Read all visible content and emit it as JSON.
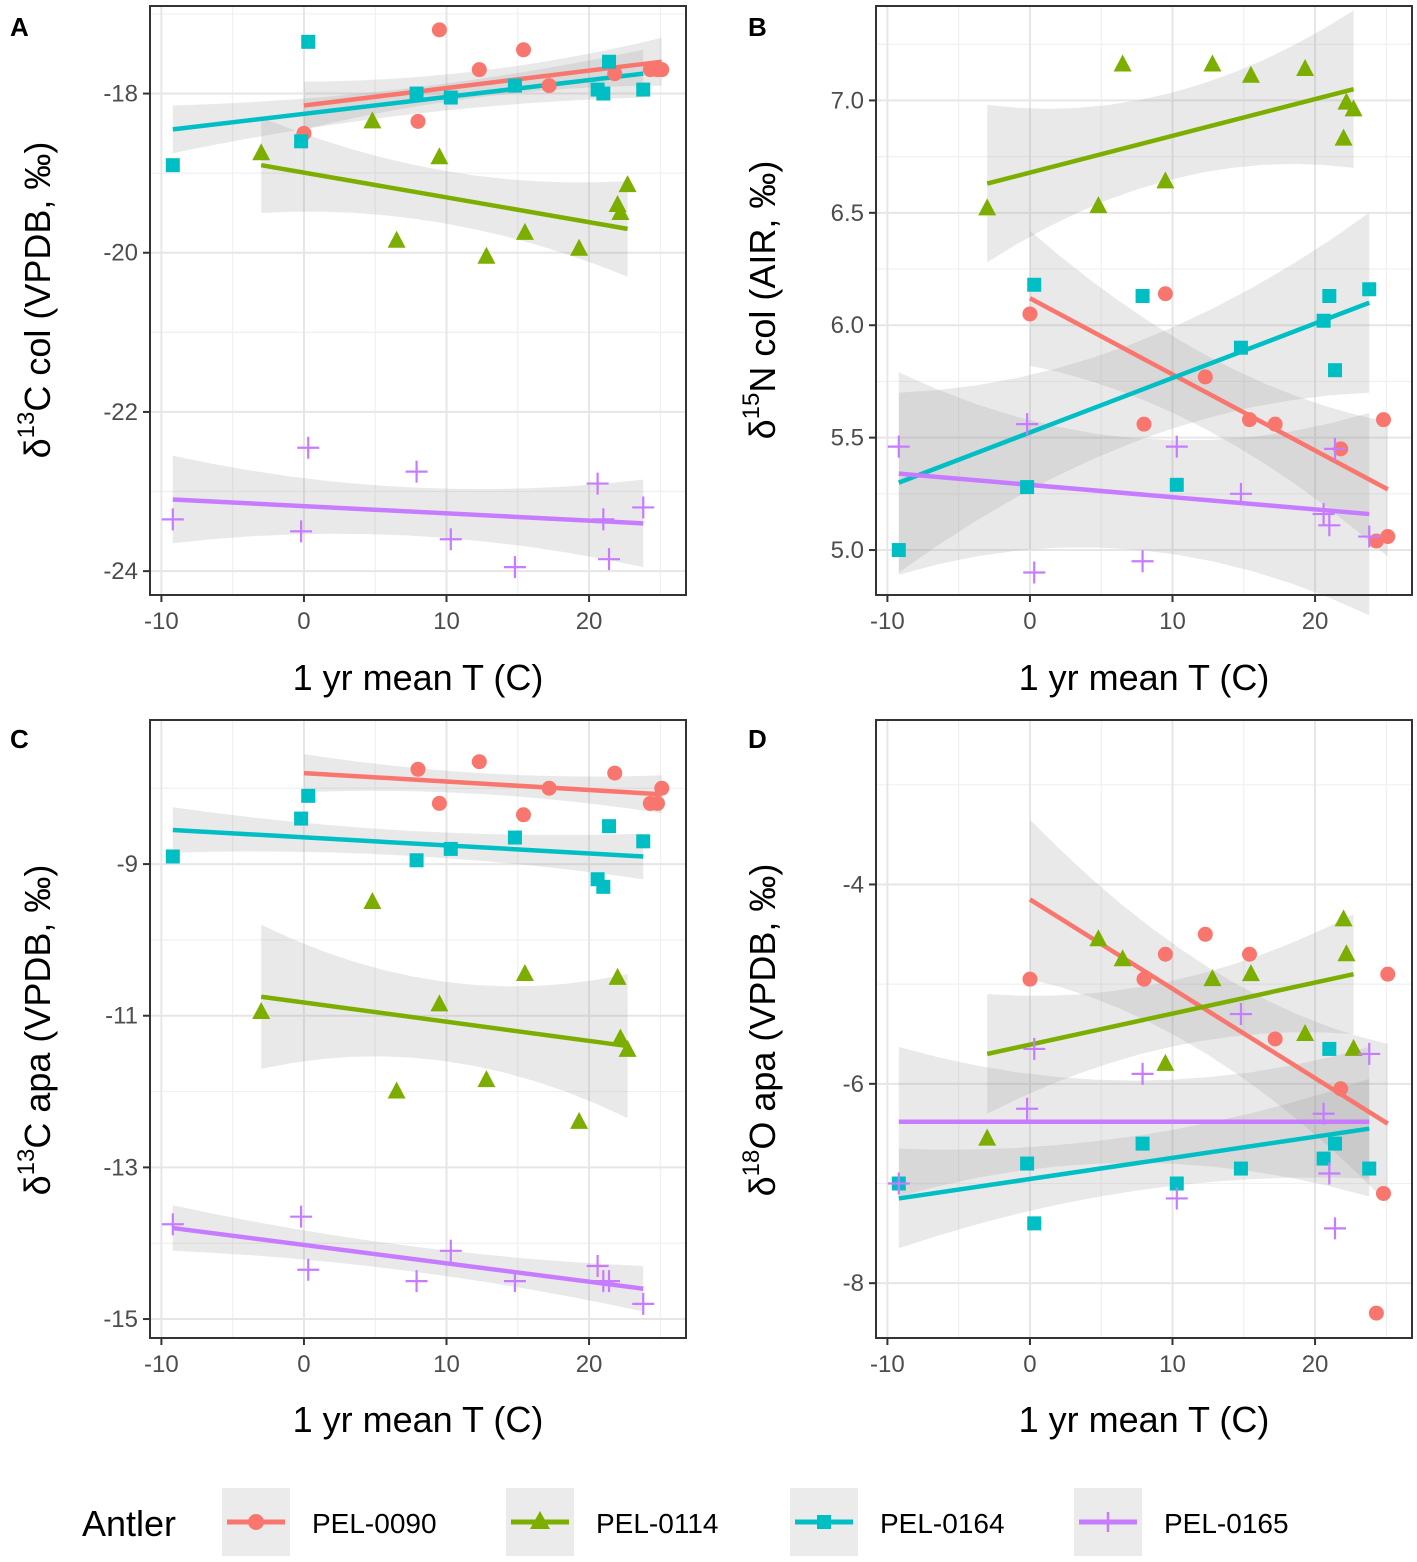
{
  "legend": {
    "title": "Antler",
    "entries": [
      {
        "label": "PEL-0090",
        "color": "#F8766D",
        "shape": "circle"
      },
      {
        "label": "PEL-0114",
        "color": "#7CAE00",
        "shape": "triangle"
      },
      {
        "label": "PEL-0164",
        "color": "#00BFC4",
        "shape": "square"
      },
      {
        "label": "PEL-0165",
        "color": "#C77CFF",
        "shape": "cross"
      }
    ]
  },
  "chart_data": [
    {
      "type": "scatter",
      "panel": "A",
      "xlabel": "1 yr mean T (C)",
      "ylabel_parts": {
        "greek": "δ",
        "sup": "13",
        "rest": "C col (VPDB, ‰)"
      },
      "xlim": [
        -10.8,
        26.8
      ],
      "ylim": [
        -24.3,
        -16.9
      ],
      "xticks": [
        -10,
        0,
        10,
        20
      ],
      "xtick_labels": [
        "-10",
        "0",
        "10",
        "20"
      ],
      "yticks": [
        -24,
        -22,
        -20,
        -18
      ],
      "ytick_labels": [
        "-24",
        "-22",
        "-20",
        "-18"
      ],
      "series": [
        {
          "name": "PEL-0090",
          "x": [
            0,
            9.5,
            8,
            12.3,
            15.4,
            17.2,
            21.8,
            24.3,
            24.8,
            25.1
          ],
          "y": [
            -18.5,
            -17.2,
            -18.35,
            -17.7,
            -17.45,
            -17.9,
            -17.75,
            -17.7,
            -17.7,
            -17.7
          ],
          "fit": {
            "x": [
              0,
              25.1
            ],
            "y": [
              -18.15,
              -17.6
            ]
          },
          "ci_halfwidth": 0.3
        },
        {
          "name": "PEL-0114",
          "x": [
            -3,
            4.8,
            6.5,
            9.5,
            12.8,
            15.5,
            19.3,
            22,
            22.2,
            22.7
          ],
          "y": [
            -18.75,
            -18.35,
            -19.85,
            -18.8,
            -20.05,
            -19.75,
            -19.95,
            -19.4,
            -19.5,
            -19.15
          ],
          "fit": {
            "x": [
              -3,
              22.7
            ],
            "y": [
              -18.9,
              -19.7
            ]
          },
          "ci_halfwidth": 0.6
        },
        {
          "name": "PEL-0164",
          "x": [
            -9.2,
            -0.2,
            0.3,
            7.9,
            10.3,
            14.8,
            20.6,
            21,
            21.4,
            23.8
          ],
          "y": [
            -18.9,
            -18.6,
            -17.35,
            -18,
            -18.05,
            -17.9,
            -17.95,
            -18,
            -17.6,
            -17.95
          ],
          "fit": {
            "x": [
              -9.2,
              23.8
            ],
            "y": [
              -18.45,
              -17.75
            ]
          },
          "ci_halfwidth": 0.3
        },
        {
          "name": "PEL-0165",
          "x": [
            -9.2,
            -0.2,
            0.3,
            7.9,
            10.3,
            14.8,
            20.6,
            21,
            21.4,
            23.8
          ],
          "y": [
            -23.35,
            -23.5,
            -22.45,
            -22.75,
            -23.6,
            -23.95,
            -22.9,
            -23.35,
            -23.85,
            -23.2
          ],
          "fit": {
            "x": [
              -9.2,
              23.8
            ],
            "y": [
              -23.1,
              -23.4
            ]
          },
          "ci_halfwidth": 0.55
        }
      ]
    },
    {
      "type": "scatter",
      "panel": "B",
      "xlabel": "1 yr mean T (C)",
      "ylabel_parts": {
        "greek": "δ",
        "sup": "15",
        "rest": "N col (AIR, ‰)"
      },
      "xlim": [
        -10.8,
        26.8
      ],
      "ylim": [
        4.8,
        7.42
      ],
      "xticks": [
        -10,
        0,
        10,
        20
      ],
      "xtick_labels": [
        "-10",
        "0",
        "10",
        "20"
      ],
      "yticks": [
        5.0,
        5.5,
        6.0,
        6.5,
        7.0
      ],
      "ytick_labels": [
        "5.0",
        "5.5",
        "6.0",
        "6.5",
        "7.0"
      ],
      "series": [
        {
          "name": "PEL-0090",
          "x": [
            0,
            9.5,
            8,
            12.3,
            15.4,
            17.2,
            21.8,
            24.3,
            24.8,
            25.1
          ],
          "y": [
            6.05,
            6.14,
            5.56,
            5.77,
            5.58,
            5.56,
            5.45,
            5.04,
            5.58,
            5.06
          ],
          "fit": {
            "x": [
              0,
              25.1
            ],
            "y": [
              6.12,
              5.27
            ]
          },
          "ci_halfwidth": 0.3
        },
        {
          "name": "PEL-0114",
          "x": [
            -3,
            4.8,
            6.5,
            9.5,
            12.8,
            15.5,
            19.3,
            22,
            22.2,
            22.7
          ],
          "y": [
            6.52,
            6.53,
            7.16,
            6.64,
            7.16,
            7.11,
            7.14,
            6.83,
            6.99,
            6.96
          ],
          "fit": {
            "x": [
              -3,
              22.7
            ],
            "y": [
              6.63,
              7.05
            ]
          },
          "ci_halfwidth": 0.35
        },
        {
          "name": "PEL-0164",
          "x": [
            -9.2,
            -0.2,
            0.3,
            7.9,
            10.3,
            14.8,
            20.6,
            21,
            21.4,
            23.8
          ],
          "y": [
            5.0,
            5.28,
            6.18,
            6.13,
            5.29,
            5.9,
            6.02,
            6.13,
            5.8,
            6.16
          ],
          "fit": {
            "x": [
              -9.2,
              23.8
            ],
            "y": [
              5.3,
              6.1
            ]
          },
          "ci_halfwidth": 0.4
        },
        {
          "name": "PEL-0165",
          "x": [
            -9.2,
            -0.2,
            0.3,
            7.9,
            10.3,
            14.8,
            20.6,
            21,
            21.4,
            23.8
          ],
          "y": [
            5.46,
            5.56,
            4.9,
            4.95,
            5.46,
            5.25,
            5.16,
            5.11,
            5.45,
            5.06
          ],
          "fit": {
            "x": [
              -9.2,
              23.8
            ],
            "y": [
              5.34,
              5.16
            ]
          },
          "ci_halfwidth": 0.45
        }
      ]
    },
    {
      "type": "scatter",
      "panel": "C",
      "xlabel": "1 yr mean T (C)",
      "ylabel_parts": {
        "greek": "δ",
        "sup": "13",
        "rest": "C apa (VPDB, ‰)"
      },
      "xlim": [
        -10.8,
        26.8
      ],
      "ylim": [
        -15.25,
        -7.1
      ],
      "xticks": [
        -10,
        0,
        10,
        20
      ],
      "xtick_labels": [
        "-10",
        "0",
        "10",
        "20"
      ],
      "yticks": [
        -15,
        -13,
        -11,
        -9
      ],
      "ytick_labels": [
        "-15",
        "-13",
        "-11",
        "-9"
      ],
      "series": [
        {
          "name": "PEL-0090",
          "x": [
            9.5,
            8,
            12.3,
            15.4,
            17.2,
            21.8,
            24.3,
            24.8,
            25.1
          ],
          "y": [
            -8.2,
            -7.75,
            -7.65,
            -8.35,
            -8.0,
            -7.8,
            -8.2,
            -8.2,
            -8.0
          ],
          "fit": {
            "x": [
              0,
              25.1
            ],
            "y": [
              -7.8,
              -8.08
            ]
          },
          "ci_halfwidth": 0.25
        },
        {
          "name": "PEL-0114",
          "x": [
            -3,
            4.8,
            6.5,
            9.5,
            12.8,
            15.5,
            19.3,
            22,
            22.2,
            22.7
          ],
          "y": [
            -10.95,
            -9.5,
            -12.0,
            -10.85,
            -11.85,
            -10.45,
            -12.4,
            -10.5,
            -11.3,
            -11.45
          ],
          "fit": {
            "x": [
              -3,
              22.7
            ],
            "y": [
              -10.75,
              -11.4
            ]
          },
          "ci_halfwidth": 0.95
        },
        {
          "name": "PEL-0164",
          "x": [
            -9.2,
            -0.2,
            0.3,
            7.9,
            10.3,
            14.8,
            20.6,
            21,
            21.4,
            23.8
          ],
          "y": [
            -8.9,
            -8.4,
            -8.1,
            -8.95,
            -8.8,
            -8.65,
            -9.2,
            -9.3,
            -8.5,
            -8.7
          ],
          "fit": {
            "x": [
              -9.2,
              23.8
            ],
            "y": [
              -8.55,
              -8.9
            ]
          },
          "ci_halfwidth": 0.3
        },
        {
          "name": "PEL-0165",
          "x": [
            -9.2,
            -0.2,
            0.3,
            7.9,
            10.3,
            14.8,
            20.6,
            21,
            21.4,
            23.8
          ],
          "y": [
            -13.75,
            -13.65,
            -14.35,
            -14.5,
            -14.1,
            -14.5,
            -14.3,
            -14.5,
            -14.5,
            -14.8
          ],
          "fit": {
            "x": [
              -9.2,
              23.8
            ],
            "y": [
              -13.8,
              -14.6
            ]
          },
          "ci_halfwidth": 0.3
        }
      ]
    },
    {
      "type": "scatter",
      "panel": "D",
      "xlabel": "1 yr mean T (C)",
      "ylabel_parts": {
        "greek": "δ",
        "sup": "18",
        "rest": "O apa (VPDB, ‰)"
      },
      "xlim": [
        -10.8,
        26.8
      ],
      "ylim": [
        -8.55,
        -2.35
      ],
      "xticks": [
        -10,
        0,
        10,
        20
      ],
      "xtick_labels": [
        "-10",
        "0",
        "10",
        "20"
      ],
      "yticks": [
        -8,
        -6,
        -4
      ],
      "ytick_labels": [
        "-8",
        "-6",
        "-4"
      ],
      "series": [
        {
          "name": "PEL-0090",
          "x": [
            0,
            9.5,
            8,
            12.3,
            15.4,
            17.2,
            21.8,
            24.3,
            24.8,
            25.1
          ],
          "y": [
            -4.95,
            -4.7,
            -4.95,
            -4.5,
            -4.7,
            -5.55,
            -6.05,
            -8.3,
            -7.1,
            -4.9
          ],
          "fit": {
            "x": [
              0,
              25.1
            ],
            "y": [
              -4.15,
              -6.4
            ]
          },
          "ci_halfwidth": 0.8
        },
        {
          "name": "PEL-0114",
          "x": [
            -3,
            4.8,
            6.5,
            9.5,
            12.8,
            15.5,
            19.3,
            22,
            22.2,
            22.7
          ],
          "y": [
            -6.55,
            -4.55,
            -4.75,
            -5.8,
            -4.95,
            -4.9,
            -5.5,
            -4.35,
            -4.7,
            -5.65
          ],
          "fit": {
            "x": [
              -3,
              22.7
            ],
            "y": [
              -5.7,
              -4.9
            ]
          },
          "ci_halfwidth": 0.6
        },
        {
          "name": "PEL-0164",
          "x": [
            -9.2,
            -0.2,
            0.3,
            7.9,
            10.3,
            14.8,
            20.6,
            21,
            21.4,
            23.8
          ],
          "y": [
            -7.0,
            -6.8,
            -7.4,
            -6.6,
            -7.0,
            -6.85,
            -6.75,
            -5.65,
            -6.6,
            -6.85
          ],
          "fit": {
            "x": [
              -9.2,
              23.8
            ],
            "y": [
              -7.15,
              -6.45
            ]
          },
          "ci_halfwidth": 0.5
        },
        {
          "name": "PEL-0165",
          "x": [
            -9.2,
            -0.2,
            0.3,
            7.9,
            10.3,
            14.8,
            20.6,
            21,
            21.4,
            23.8
          ],
          "y": [
            -7.0,
            -6.25,
            -5.65,
            -5.9,
            -7.15,
            -5.3,
            -6.3,
            -6.9,
            -7.45,
            -5.7
          ],
          "fit": {
            "x": [
              -9.2,
              23.8
            ],
            "y": [
              -6.38,
              -6.38
            ]
          },
          "ci_halfwidth": 0.75
        }
      ]
    }
  ]
}
